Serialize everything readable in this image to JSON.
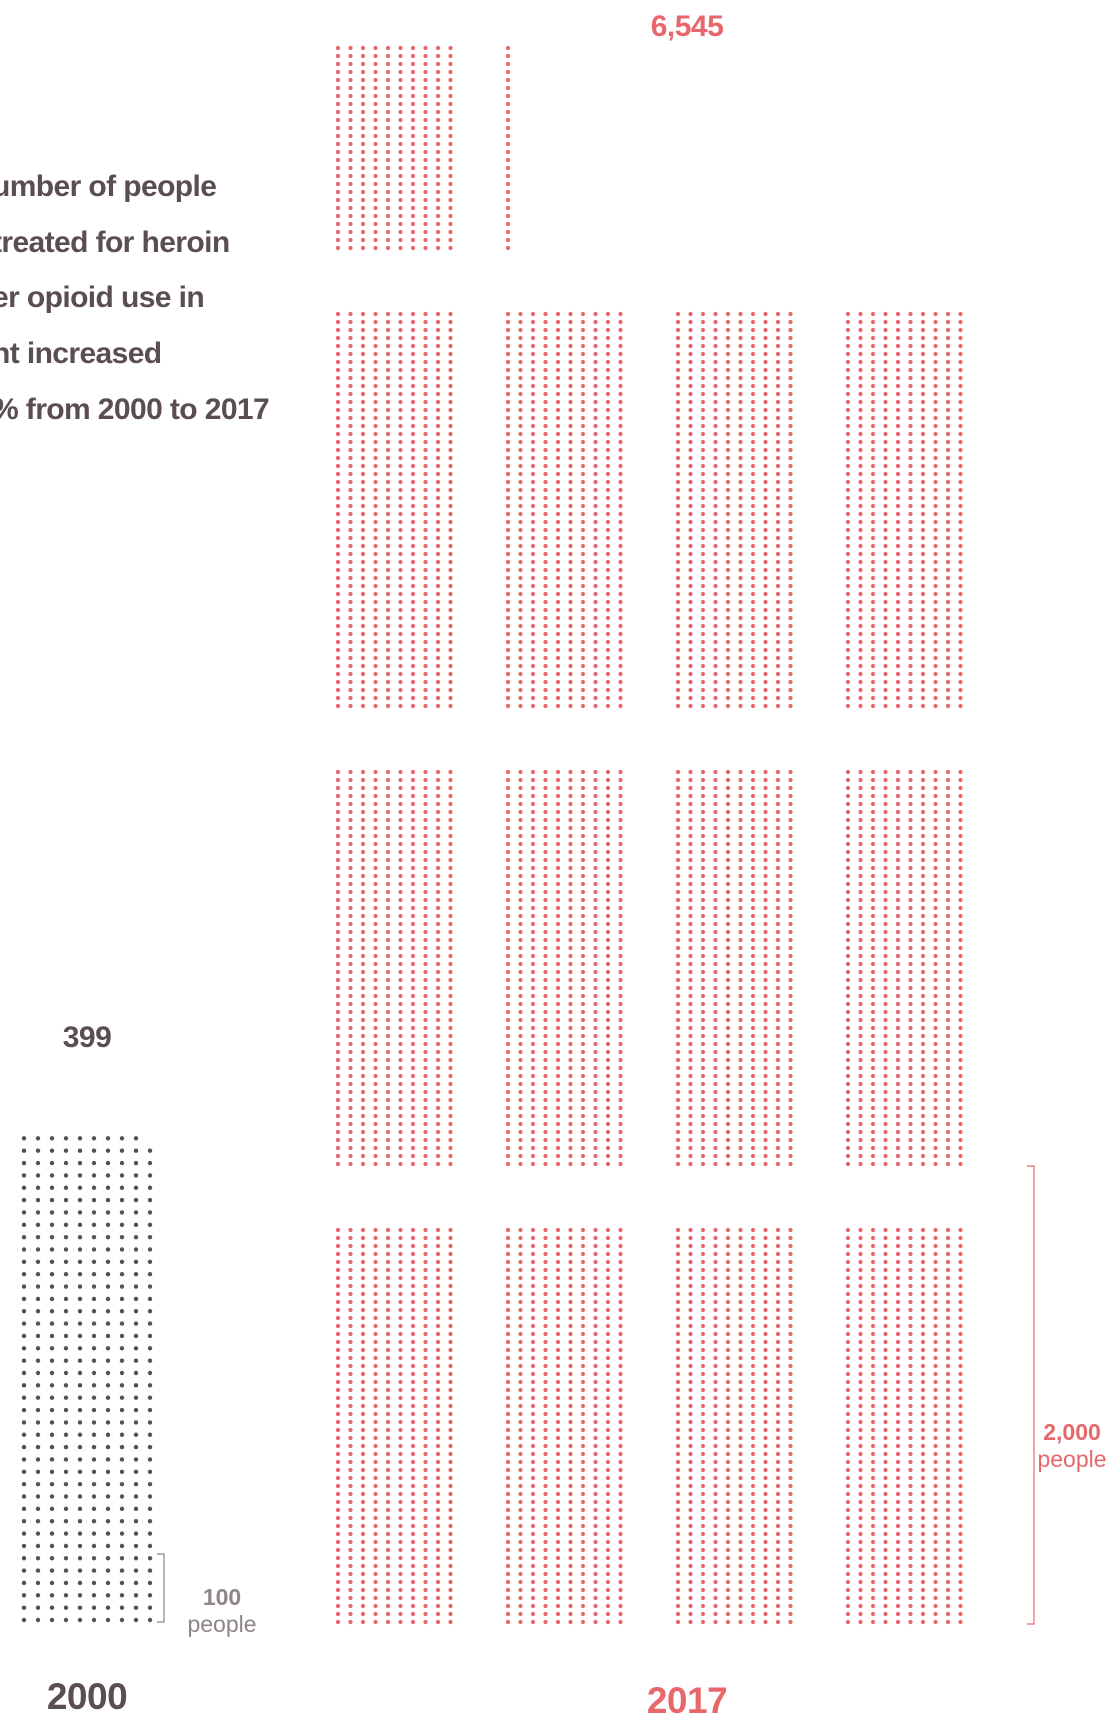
{
  "colors": {
    "year_2000": "#5a4e51",
    "year_2017": "#e8676b",
    "headline": "#5a4e51",
    "scale_text": "#8d8587"
  },
  "headline": {
    "lines": [
      "umber of people",
      "treated for heroin",
      "er opioid use in",
      "nt increased",
      "% from 2000 to 2017"
    ]
  },
  "chart_data": {
    "type": "waffle",
    "unit": "people",
    "series": [
      {
        "category": "2000",
        "value": 399,
        "value_label": "399",
        "color": "#5a4e51",
        "scale_marker": {
          "value_label": "100",
          "unit_label": "people"
        }
      },
      {
        "category": "2017",
        "value": 6545,
        "value_label": "6,545",
        "color": "#e8676b",
        "scale_marker": {
          "value_label": "2,000",
          "unit_label": "people"
        }
      }
    ]
  }
}
